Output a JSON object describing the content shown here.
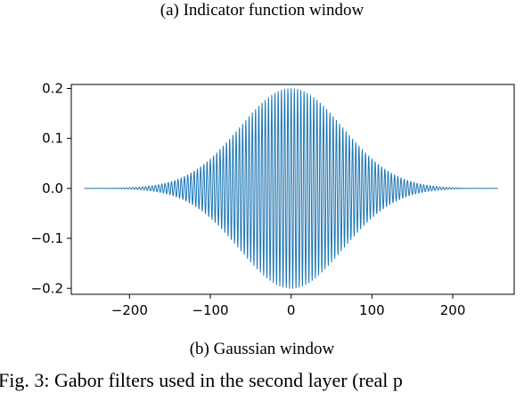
{
  "captions": {
    "top": "(a) Indicator function window",
    "bottom": "(b) Gaussian window",
    "figure": "Fig. 3: Gabor filters used in the second layer (real p"
  },
  "chart_data": {
    "type": "line",
    "title": "",
    "xlabel": "",
    "ylabel": "",
    "xlim": [
      -272,
      276
    ],
    "ylim": [
      -0.212,
      0.208
    ],
    "x_ticks": [
      -200,
      -100,
      0,
      100,
      200
    ],
    "x_tick_labels": [
      "−200",
      "−100",
      "0",
      "100",
      "200"
    ],
    "y_ticks": [
      0.2,
      0.1,
      0.0,
      -0.1,
      -0.2
    ],
    "y_tick_labels": [
      "0.2",
      "0.1",
      "0.0",
      "−0.1",
      "−0.2"
    ],
    "grid": false,
    "series": [
      {
        "color": "#1f77b4",
        "x_range": [
          -256,
          256
        ],
        "function": "gabor_gaussian",
        "amplitude": 0.2,
        "sigma": 64,
        "period": 4
      }
    ]
  }
}
